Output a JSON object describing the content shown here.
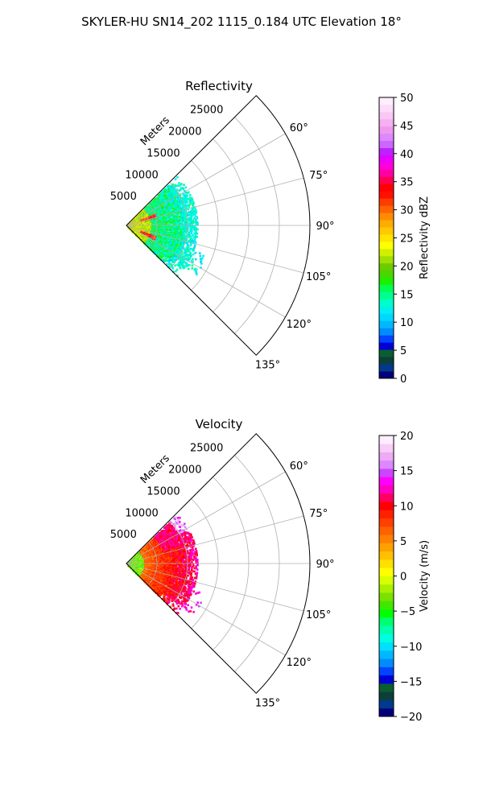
{
  "figure": {
    "suptitle": "SKYLER-HU  SN14_202  1115_0.184 UTC Elevation 18°"
  },
  "chart_data": [
    {
      "type": "heatmap",
      "projection": "polar-sector",
      "title": "Reflectivity",
      "range_label": "Meters",
      "angle_ticks": [
        "60°",
        "75°",
        "90°",
        "105°",
        "120°",
        "135°"
      ],
      "angle_range_deg": [
        45,
        135
      ],
      "range_ticks": [
        "5000",
        "10000",
        "15000",
        "20000",
        "25000"
      ],
      "range_max": 30000,
      "grid": true,
      "data_extent_m": 11500,
      "colorbar": {
        "label": "Reflectivity dBZ",
        "vmin": 0,
        "vmax": 50,
        "ticks": [
          "0",
          "5",
          "10",
          "15",
          "20",
          "25",
          "30",
          "35",
          "40",
          "45",
          "50"
        ],
        "colors": [
          "#00007a",
          "#003a8c",
          "#0c3f3a",
          "#0a5e2f",
          "#0000d6",
          "#0044ff",
          "#008cff",
          "#00b8ff",
          "#00d8ff",
          "#00f0f0",
          "#00ffc8",
          "#00ff90",
          "#00ff55",
          "#1cf000",
          "#48d800",
          "#6ccc00",
          "#a0e000",
          "#d0f000",
          "#ffff00",
          "#ffe400",
          "#ffc800",
          "#ffac00",
          "#ff8c00",
          "#ff6400",
          "#ff3c00",
          "#ff1000",
          "#ff0000",
          "#ff0050",
          "#ff00a0",
          "#ff00d8",
          "#e600ff",
          "#bb22ff",
          "#cc66ff",
          "#dd88ff",
          "#ee99ee",
          "#f4b0f0",
          "#f8c8f4",
          "#fcdcfa",
          "#ffeefe"
        ]
      }
    },
    {
      "type": "heatmap",
      "projection": "polar-sector",
      "title": "Velocity",
      "range_label": "Meters",
      "angle_ticks": [
        "60°",
        "75°",
        "90°",
        "105°",
        "120°",
        "135°"
      ],
      "angle_range_deg": [
        45,
        135
      ],
      "range_ticks": [
        "5000",
        "10000",
        "15000",
        "20000",
        "25000"
      ],
      "range_max": 30000,
      "grid": true,
      "data_extent_m": 11500,
      "colorbar": {
        "label": "Velocity (m/s)",
        "vmin": -20,
        "vmax": 20,
        "ticks": [
          "−20",
          "−15",
          "−10",
          "−5",
          "0",
          "5",
          "10",
          "15",
          "20"
        ],
        "colors": [
          "#00007a",
          "#003a8c",
          "#0c3f3a",
          "#0a5e2f",
          "#0000d6",
          "#0044ff",
          "#008cff",
          "#00b8ff",
          "#00e0ff",
          "#00ffe0",
          "#00ffb0",
          "#00ff70",
          "#00ff00",
          "#40e800",
          "#7ce000",
          "#a8f000",
          "#d8ff00",
          "#ffff00",
          "#ffe000",
          "#ffc000",
          "#ffa000",
          "#ff8000",
          "#ff6000",
          "#ff4000",
          "#ff2000",
          "#ff0000",
          "#ff0060",
          "#ff00c0",
          "#ff00ff",
          "#cc44ff",
          "#dd88ff",
          "#eeaaf4",
          "#f8ccf8",
          "#ffeeff"
        ]
      }
    }
  ]
}
